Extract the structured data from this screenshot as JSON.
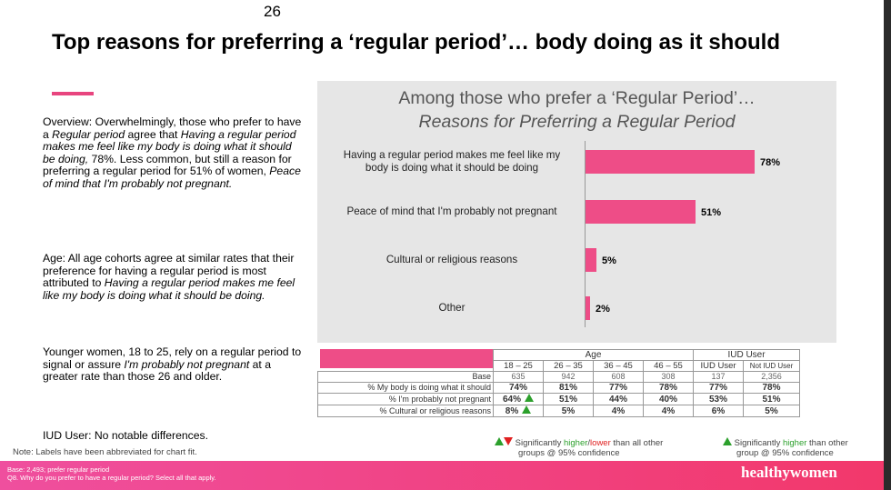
{
  "slide_number": "26",
  "title": "Top reasons for preferring a ‘regular period’… body doing as it should",
  "overview": {
    "lead": "Overview: Overwhelmingly, those who prefer to have a ",
    "italic1": "Regular period",
    "mid1": " agree that ",
    "italic2": "Having a regular period makes me feel like my body is doing what it should be doing,",
    "mid2": " 78%. Less common, but still a reason for preferring a regular period for 51% of women, ",
    "italic3": "Peace of mind that I'm probably not pregnant."
  },
  "age_para": {
    "lead": "Age: All age cohorts agree at similar rates that their preference for having a regular period is most attributed to ",
    "italic": "Having a regular period makes me feel like my body is doing what it should be doing."
  },
  "younger_para": {
    "lead": "Younger women, 18 to 25, rely on a regular period to signal or assure ",
    "italic": "I'm probably not pregnant",
    "tail": " at a greater rate than those 26 and older."
  },
  "iud_para": "IUD User: No notable differences.",
  "note": "Note: Labels have been abbreviated for chart fit.",
  "chart_data": {
    "type": "bar",
    "orientation": "horizontal",
    "title": "Among those who prefer a ‘Regular Period’…",
    "subtitle": "Reasons for Preferring a Regular Period",
    "categories": [
      "Having a regular period makes me feel like my body is doing what it should be doing",
      "Peace of mind that I'm probably not pregnant",
      "Cultural or religious reasons",
      "Other"
    ],
    "category_lines": [
      [
        "Having a regular period makes me feel like my",
        "body is doing what it should be doing"
      ],
      [
        "Peace of mind that I'm probably not pregnant"
      ],
      [
        "Cultural or religious reasons"
      ],
      [
        "Other"
      ]
    ],
    "values": [
      78,
      51,
      5,
      2
    ],
    "value_labels": [
      "78%",
      "51%",
      "5%",
      "2%"
    ],
    "xlim": [
      0,
      100
    ],
    "bar_color": "#ee4d87",
    "background": "#e6e6e6"
  },
  "table": {
    "group_age": "Age",
    "group_iud": "IUD User",
    "columns": [
      "18 – 25",
      "26 – 35",
      "36 – 45",
      "46 – 55",
      "IUD User",
      "Not IUD User"
    ],
    "base_label": "Base",
    "base": [
      "635",
      "942",
      "608",
      "308",
      "137",
      "2,356"
    ],
    "rows": [
      {
        "label": "% My body is doing what it should",
        "values": [
          "74%",
          "81%",
          "77%",
          "78%",
          "77%",
          "78%"
        ],
        "markers": [
          "",
          "",
          "",
          "",
          "",
          ""
        ]
      },
      {
        "label": "% I'm probably not pregnant",
        "values": [
          "64%",
          "51%",
          "44%",
          "40%",
          "53%",
          "51%"
        ],
        "markers": [
          "up",
          "",
          "",
          "",
          "",
          ""
        ]
      },
      {
        "label": "% Cultural or religious reasons",
        "values": [
          "8%",
          "5%",
          "4%",
          "4%",
          "6%",
          "5%"
        ],
        "markers": [
          "up",
          "",
          "",
          "",
          "",
          ""
        ]
      }
    ]
  },
  "legend": {
    "left_pre": "Significantly ",
    "left_higher": "higher",
    "left_slash": "/",
    "left_lower": "lower",
    "left_post": " than all other",
    "left_line2": "groups @ 95% confidence",
    "right_pre": "Significantly ",
    "right_higher": "higher",
    "right_post": " than other",
    "right_line2": "group @ 95% confidence"
  },
  "footer": {
    "base": "Base: 2,493; prefer regular period",
    "question": "Q8. Why do you prefer to have a regular period? Select all that apply.",
    "brand": "healthywomen"
  },
  "colors": {
    "accent": "#e8457f",
    "bar": "#ee4d87",
    "sig_up": "#2ca02c",
    "sig_down": "#e02020"
  }
}
